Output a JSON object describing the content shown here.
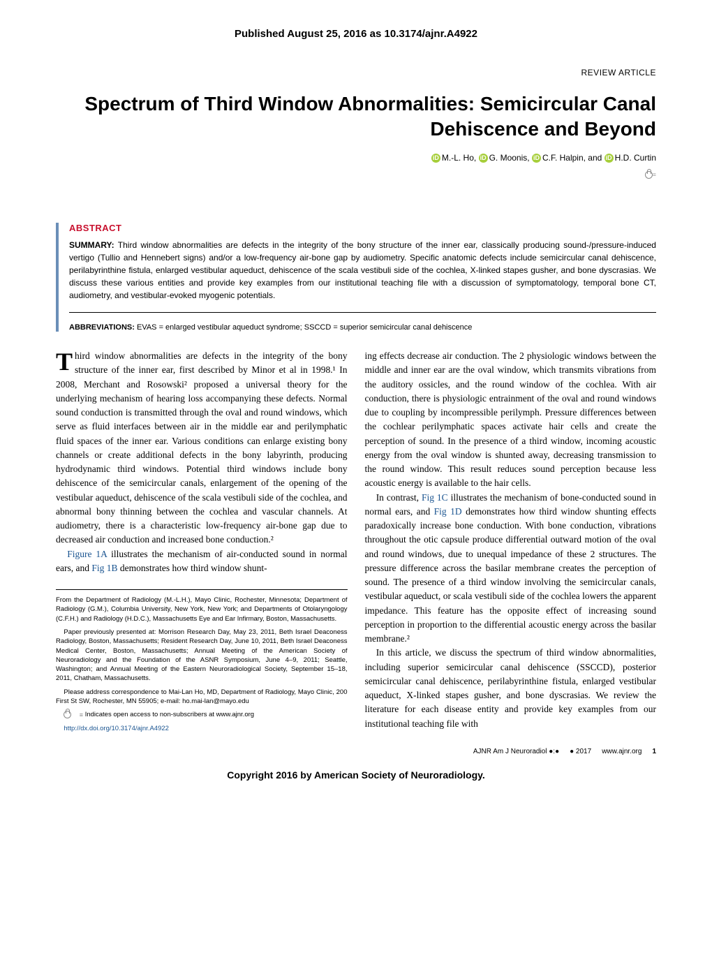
{
  "header": {
    "pub_date": "Published August 25, 2016 as 10.3174/ajnr.A4922",
    "article_type": "REVIEW ARTICLE",
    "title": "Spectrum of Third Window Abnormalities: Semicircular Canal Dehiscence and Beyond",
    "authors": [
      "M.-L. Ho",
      "G. Moonis",
      "C.F. Halpin",
      "H.D. Curtin"
    ]
  },
  "abstract": {
    "heading": "ABSTRACT",
    "summary_label": "SUMMARY:",
    "summary_text": "Third window abnormalities are defects in the integrity of the bony structure of the inner ear, classically producing sound-/pressure-induced vertigo (Tullio and Hennebert signs) and/or a low-frequency air-bone gap by audiometry. Specific anatomic defects include semicircular canal dehiscence, perilabyrinthine fistula, enlarged vestibular aqueduct, dehiscence of the scala vestibuli side of the cochlea, X-linked stapes gusher, and bone dyscrasias. We discuss these various entities and provide key examples from our institutional teaching file with a discussion of symptomatology, temporal bone CT, audiometry, and vestibular-evoked myogenic potentials.",
    "abbrev_label": "ABBREVIATIONS:",
    "abbrev_text": "EVAS = enlarged vestibular aqueduct syndrome; SSCCD = superior semicircular canal dehiscence"
  },
  "body": {
    "left_col": {
      "p1_dropcap": "T",
      "p1": "hird window abnormalities are defects in the integrity of the bony structure of the inner ear, first described by Minor et al in 1998.¹ In 2008, Merchant and Rosowski² proposed a universal theory for the underlying mechanism of hearing loss accompanying these defects. Normal sound conduction is transmitted through the oval and round windows, which serve as fluid interfaces between air in the middle ear and perilymphatic fluid spaces of the inner ear. Various conditions can enlarge existing bony channels or create additional defects in the bony labyrinth, producing hydrodynamic third windows. Potential third windows include bony dehiscence of the semicircular canals, enlargement of the opening of the vestibular aqueduct, dehiscence of the scala vestibuli side of the cochlea, and abnormal bony thinning between the cochlea and vascular channels. At audiometry, there is a characteristic low-frequency air-bone gap due to decreased air conduction and increased bone conduction.²",
      "p2_pre": "Figure 1A",
      "p2_mid": " illustrates the mechanism of air-conducted sound in normal ears, and ",
      "p2_link": "Fig 1B",
      "p2_end": " demonstrates how third window shunt-"
    },
    "right_col": {
      "p1": "ing effects decrease air conduction. The 2 physiologic windows between the middle and inner ear are the oval window, which transmits vibrations from the auditory ossicles, and the round window of the cochlea. With air conduction, there is physiologic entrainment of the oval and round windows due to coupling by incompressible perilymph. Pressure differences between the cochlear perilymphatic spaces activate hair cells and create the perception of sound. In the presence of a third window, incoming acoustic energy from the oval window is shunted away, decreasing transmission to the round window. This result reduces sound perception because less acoustic energy is available to the hair cells.",
      "p2_a": "In contrast, ",
      "p2_l1": "Fig 1C",
      "p2_b": " illustrates the mechanism of bone-conducted sound in normal ears, and ",
      "p2_l2": "Fig 1D",
      "p2_c": " demonstrates how third window shunting effects paradoxically increase bone conduction. With bone conduction, vibrations throughout the otic capsule produce differential outward motion of the oval and round windows, due to unequal impedance of these 2 structures. The pressure difference across the basilar membrane creates the perception of sound. The presence of a third window involving the semicircular canals, vestibular aqueduct, or scala vestibuli side of the cochlea lowers the apparent impedance. This feature has the opposite effect of increasing sound perception in proportion to the differential acoustic energy across the basilar membrane.²",
      "p3": "In this article, we discuss the spectrum of third window abnormalities, including superior semicircular canal dehiscence (SSCCD), posterior semicircular canal dehiscence, perilabyrinthine fistula, enlarged vestibular aqueduct, X-linked stapes gusher, and bone dyscrasias. We review the literature for each disease entity and provide key examples from our institutional teaching file with"
    }
  },
  "footnotes": {
    "affil": "From the Department of Radiology (M.-L.H.), Mayo Clinic, Rochester, Minnesota; Department of Radiology (G.M.), Columbia University, New York, New York; and Departments of Otolaryngology (C.F.H.) and Radiology (H.D.C.), Massachusetts Eye and Ear Infirmary, Boston, Massachusetts.",
    "presented": "Paper previously presented at: Morrison Research Day, May 23, 2011, Beth Israel Deaconess Radiology, Boston, Massachusetts; Resident Research Day, June 10, 2011, Beth Israel Deaconess Medical Center, Boston, Massachusetts; Annual Meeting of the American Society of Neuroradiology and the Foundation of the ASNR Symposium, June 4–9, 2011; Seattle, Washington; and Annual Meeting of the Eastern Neuroradiological Society, September 15–18, 2011, Chatham, Massachusetts.",
    "corr": "Please address correspondence to Mai-Lan Ho, MD, Department of Radiology, Mayo Clinic, 200 First St SW, Rochester, MN 55905; e-mail: ho.mai-lan@mayo.edu",
    "oa": "Indicates open access to non-subscribers at www.ajnr.org",
    "doi": "http://dx.doi.org/10.3174/ajnr.A4922"
  },
  "page_footer": {
    "journal": "AJNR Am J Neuroradiol ●:●",
    "date": "● 2017",
    "url": "www.ajnr.org",
    "page": "1"
  },
  "copyright": "Copyright 2016 by American Society of Neuroradiology."
}
